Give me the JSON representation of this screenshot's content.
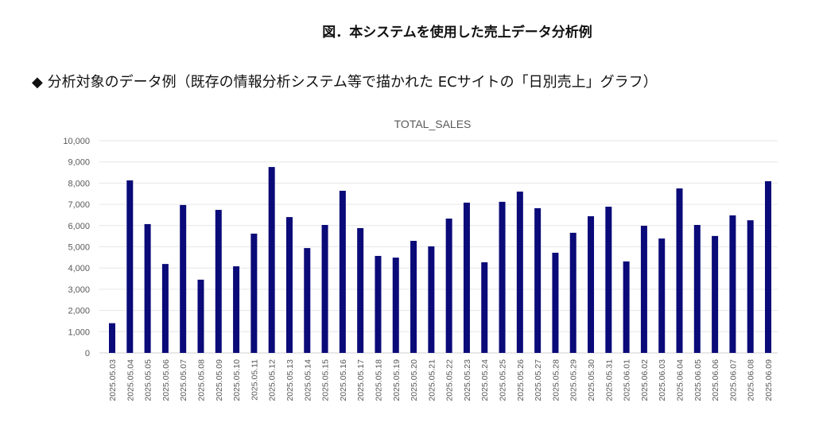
{
  "figure_caption": "図．本システムを使用した売上データ分析例",
  "heading": "◆ 分析対象のデータ例（既存の情報分析システム等で描かれた ECサイトの「日別売上」グラフ）",
  "chart_data": {
    "type": "bar",
    "title": "TOTAL_SALES",
    "xlabel": "",
    "ylabel": "",
    "ylim": [
      0,
      10000
    ],
    "yticks": [
      "0",
      "1,000",
      "2,000",
      "3,000",
      "4,000",
      "5,000",
      "6,000",
      "7,000",
      "8,000",
      "9,000",
      "10,000"
    ],
    "grid": true,
    "bar_color": "#0a0a78",
    "categories": [
      "2025.05.03",
      "2025.05.04",
      "2025.05.05",
      "2025.05.06",
      "2025.05.07",
      "2025.05.08",
      "2025.05.09",
      "2025.05.10",
      "2025.05.11",
      "2025.05.12",
      "2025.05.13",
      "2025.05.14",
      "2025.05.15",
      "2025.05.16",
      "2025.05.17",
      "2025.05.18",
      "2025.05.19",
      "2025.05.20",
      "2025.05.21",
      "2025.05.22",
      "2025.05.23",
      "2025.05.24",
      "2025.05.25",
      "2025.05.26",
      "2025.05.27",
      "2025.05.28",
      "2025.05.29",
      "2025.05.30",
      "2025.05.31",
      "2025.06.01",
      "2025.06.02",
      "2025.06.03",
      "2025.06.04",
      "2025.06.05",
      "2025.06.06",
      "2025.06.07",
      "2025.06.08",
      "2025.06.09"
    ],
    "values": [
      1400,
      8130,
      6070,
      4190,
      6970,
      3450,
      6740,
      4080,
      5620,
      8760,
      6400,
      4940,
      6030,
      7640,
      5880,
      4570,
      4490,
      5280,
      5020,
      6330,
      7080,
      4270,
      7120,
      7600,
      6820,
      4720,
      5660,
      6440,
      6890,
      4310,
      5990,
      5390,
      7750,
      6030,
      5510,
      6480,
      6250,
      8090
    ]
  }
}
